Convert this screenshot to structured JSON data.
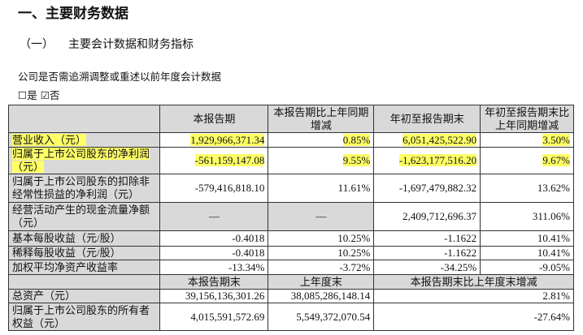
{
  "title": "一、主要财务数据",
  "subtitle": "（一）",
  "subtitle_text": "主要会计数据和财务指标",
  "question": "公司是否需追溯调整或重述以前年度会计数据",
  "options": [
    {
      "box": "☐",
      "label": "是",
      "checked": false
    },
    {
      "box": "☑",
      "label": "否",
      "checked": true
    }
  ],
  "highlight_color": "#ffff66",
  "table": {
    "headers": [
      "本报告期",
      "本报告期比上年同期增减",
      "年初至报告期末",
      "年初至报告期末比上年同期增减"
    ],
    "rows": [
      {
        "label": "营业收入（元）",
        "v": [
          "1,929,966,371.34",
          "0.85%",
          "6,051,425,522.90",
          "3.50%"
        ]
      },
      {
        "label": "归属于上市公司股东的净利润（元）",
        "v": [
          "-561,159,147.08",
          "9.55%",
          "-1,623,177,516.20",
          "9.67%"
        ]
      },
      {
        "label": "归属于上市公司股东的扣除非经常性损益的净利润（元）",
        "v": [
          "-579,416,818.10",
          "11.61%",
          "-1,697,479,882.32",
          "13.62%"
        ]
      },
      {
        "label": "经营活动产生的现金流量净额（元）",
        "v": [
          "—",
          "—",
          "2,409,712,696.37",
          "311.06%"
        ]
      },
      {
        "label": "基本每股收益（元/股）",
        "v": [
          "-0.4018",
          "10.25%",
          "-1.1622",
          "10.41%"
        ]
      },
      {
        "label": "稀释每股收益（元/股）",
        "v": [
          "-0.4018",
          "10.25%",
          "-1.1622",
          "10.41%"
        ]
      },
      {
        "label": "加权平均净资产收益率",
        "v": [
          "-13.34%",
          "-3.72%",
          "-34.25%",
          "-9.05%"
        ]
      }
    ],
    "headers2": [
      "本报告期末",
      "上年度末",
      "本报告期末比上年度末增减"
    ],
    "rows2": [
      {
        "label": "总资产（元）",
        "v": [
          "39,156,136,301.26",
          "38,085,286,148.14",
          "2.81%"
        ]
      },
      {
        "label": "归属于上市公司股东的所有者权益（元）",
        "v": [
          "4,015,591,572.69",
          "5,549,372,070.54",
          "-27.64%"
        ]
      }
    ]
  }
}
